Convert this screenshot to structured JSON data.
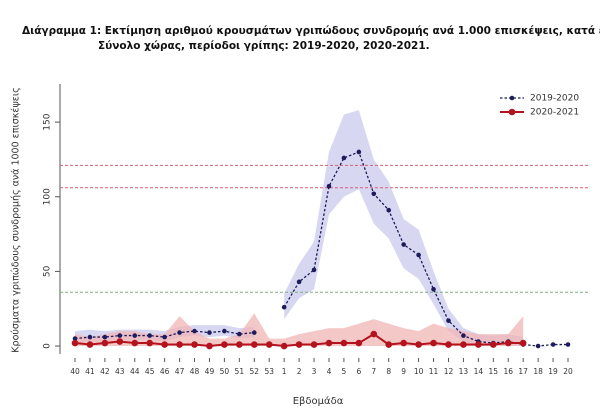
{
  "chart_data": {
    "type": "line",
    "title": "Διάγραμμα 1: Εκτίμηση αριθμού κρουσμάτων γριπώδους συνδρομής ανά 1.000 επισκέψεις, κατά εβδομάδα.",
    "subtitle": "Σύνολο χώρας, περίοδοι γρίπης:  2019-2020, 2020-2021.",
    "x_label": "Εβδομάδα",
    "y_label": "Κρούσματα γριπώδους συνδρομής ανά 1000 επισκέψεις",
    "categories": [
      "40",
      "41",
      "42",
      "43",
      "44",
      "45",
      "46",
      "47",
      "48",
      "49",
      "50",
      "51",
      "52",
      "53",
      "1",
      "2",
      "3",
      "4",
      "5",
      "6",
      "7",
      "8",
      "9",
      "10",
      "11",
      "12",
      "13",
      "14",
      "15",
      "16",
      "17",
      "18",
      "19",
      "20"
    ],
    "ylim": [
      -5,
      175
    ],
    "yticks": [
      0,
      50,
      100,
      150
    ],
    "legend": "top-right",
    "reference_lines": [
      {
        "value": 121,
        "color": "#d9607a"
      },
      {
        "value": 106,
        "color": "#d9607a"
      },
      {
        "value": 36,
        "color": "#7fb07f"
      }
    ],
    "series": [
      {
        "name": "2019-2020",
        "color": "#1c1c5c",
        "band_color": "#c9c9ec",
        "dashed": true,
        "values": [
          5,
          6,
          6,
          7,
          7,
          7,
          6,
          9,
          10,
          9,
          10,
          8,
          9,
          null,
          26,
          43,
          51,
          107,
          126,
          130,
          102,
          91,
          68,
          61,
          38,
          17,
          7,
          3,
          2,
          3,
          1,
          0,
          1,
          1
        ],
        "upper": [
          10,
          11,
          10,
          11,
          11,
          11,
          10,
          13,
          14,
          14,
          14,
          12,
          13,
          null,
          35,
          55,
          70,
          130,
          155,
          158,
          125,
          110,
          85,
          78,
          50,
          25,
          12,
          8,
          7,
          8,
          6,
          null,
          null,
          null
        ],
        "lower": [
          2,
          3,
          3,
          4,
          4,
          4,
          3,
          6,
          7,
          6,
          7,
          5,
          6,
          null,
          18,
          32,
          38,
          88,
          100,
          105,
          82,
          72,
          52,
          45,
          28,
          10,
          3,
          0,
          0,
          0,
          0,
          null,
          null,
          null
        ]
      },
      {
        "name": "2020-2021",
        "color": "#b3131d",
        "band_color": "#f2b6b6",
        "dashed": false,
        "values": [
          2,
          1,
          2,
          3,
          2,
          2,
          1,
          1,
          1,
          0,
          1,
          1,
          1,
          1,
          0,
          1,
          1,
          2,
          2,
          2,
          8,
          1,
          2,
          1,
          2,
          1,
          1,
          1,
          1,
          2,
          2,
          null,
          null,
          null
        ],
        "upper": [
          8,
          6,
          8,
          10,
          10,
          8,
          8,
          20,
          10,
          5,
          5,
          8,
          22,
          5,
          5,
          8,
          10,
          12,
          12,
          15,
          18,
          15,
          12,
          10,
          15,
          12,
          10,
          8,
          8,
          8,
          20,
          null,
          null,
          null
        ],
        "lower": [
          0,
          0,
          0,
          0,
          0,
          0,
          0,
          0,
          0,
          0,
          0,
          0,
          0,
          0,
          0,
          0,
          0,
          0,
          0,
          0,
          0,
          0,
          0,
          0,
          0,
          0,
          0,
          0,
          0,
          0,
          0,
          null,
          null,
          null
        ]
      }
    ]
  }
}
